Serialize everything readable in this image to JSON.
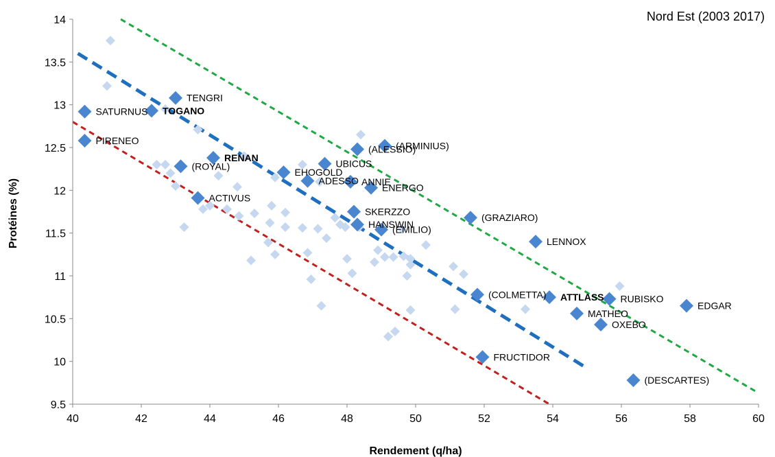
{
  "chart_data": {
    "type": "scatter",
    "title": "Nord Est (2003 2017)",
    "xlabel": "Rendement (q/ha)",
    "ylabel": "Protéines (%)",
    "xlim": [
      40,
      60
    ],
    "ylim": [
      9.5,
      14
    ],
    "xticks": [
      "40",
      "42",
      "44",
      "46",
      "48",
      "50",
      "52",
      "54",
      "56",
      "58",
      "60"
    ],
    "yticks": [
      "9.5",
      "10",
      "10.5",
      "11",
      "11.5",
      "12",
      "12.5",
      "13",
      "13.5",
      "14"
    ],
    "grid": false,
    "colors": {
      "labeled": "#4A86CF",
      "background": "#C5D8F0",
      "trend_main": "#1F6FBF",
      "trend_upper": "#1FA843",
      "trend_lower": "#C0201E"
    },
    "labeled_points": [
      {
        "label": "SATURNUS",
        "x": 40.35,
        "y": 12.92,
        "bold": false
      },
      {
        "label": "PIRENEO",
        "x": 40.35,
        "y": 12.58,
        "bold": false
      },
      {
        "label": "TOGANO",
        "x": 42.3,
        "y": 12.93,
        "bold": true
      },
      {
        "label": "TENGRI",
        "x": 43.0,
        "y": 13.08,
        "bold": false
      },
      {
        "label": "(ROYAL)",
        "x": 43.15,
        "y": 12.28,
        "bold": false
      },
      {
        "label": "RENAN",
        "x": 44.1,
        "y": 12.38,
        "bold": true
      },
      {
        "label": "ACTIVUS",
        "x": 43.65,
        "y": 11.91,
        "bold": false
      },
      {
        "label": "EHOGOLD",
        "x": 46.15,
        "y": 12.21,
        "bold": false
      },
      {
        "label": "ADESSO",
        "x": 46.85,
        "y": 12.11,
        "bold": false
      },
      {
        "label": "UBICUS",
        "x": 47.35,
        "y": 12.31,
        "bold": false
      },
      {
        "label": "(ALESSIO)",
        "x": 48.3,
        "y": 12.48,
        "bold": false
      },
      {
        "label": "(ARMINIUS)",
        "x": 49.1,
        "y": 12.52,
        "bold": false
      },
      {
        "label": "ANNIE",
        "x": 48.1,
        "y": 12.1,
        "bold": false
      },
      {
        "label": "ENERGO",
        "x": 48.7,
        "y": 12.03,
        "bold": false
      },
      {
        "label": "SKERZZO",
        "x": 48.2,
        "y": 11.75,
        "bold": false
      },
      {
        "label": "HANSWIN",
        "x": 48.3,
        "y": 11.6,
        "bold": false
      },
      {
        "label": "(EMILIO)",
        "x": 49.0,
        "y": 11.54,
        "bold": false
      },
      {
        "label": "(GRAZIARO)",
        "x": 51.6,
        "y": 11.68,
        "bold": false
      },
      {
        "label": "LENNOX",
        "x": 53.5,
        "y": 11.4,
        "bold": false
      },
      {
        "label": "(COLMETTA)",
        "x": 51.8,
        "y": 10.78,
        "bold": false
      },
      {
        "label": "ATTLASS",
        "x": 53.9,
        "y": 10.75,
        "bold": true
      },
      {
        "label": "RUBISKO",
        "x": 55.65,
        "y": 10.73,
        "bold": false
      },
      {
        "label": "EDGAR",
        "x": 57.9,
        "y": 10.65,
        "bold": false
      },
      {
        "label": "MATHEO",
        "x": 54.7,
        "y": 10.56,
        "bold": false
      },
      {
        "label": "OXEBO",
        "x": 55.4,
        "y": 10.43,
        "bold": false
      },
      {
        "label": "FRUCTIDOR",
        "x": 51.95,
        "y": 10.05,
        "bold": false
      },
      {
        "label": "(DESCARTES)",
        "x": 56.35,
        "y": 9.78,
        "bold": false
      }
    ],
    "background_points": [
      {
        "x": 41.1,
        "y": 13.75
      },
      {
        "x": 41.0,
        "y": 13.22
      },
      {
        "x": 42.7,
        "y": 12.95
      },
      {
        "x": 43.65,
        "y": 12.71
      },
      {
        "x": 42.45,
        "y": 12.3
      },
      {
        "x": 42.7,
        "y": 12.3
      },
      {
        "x": 42.85,
        "y": 12.2
      },
      {
        "x": 43.0,
        "y": 12.05
      },
      {
        "x": 44.25,
        "y": 12.17
      },
      {
        "x": 44.8,
        "y": 12.04
      },
      {
        "x": 45.0,
        "y": 12.4
      },
      {
        "x": 45.9,
        "y": 12.15
      },
      {
        "x": 46.7,
        "y": 12.3
      },
      {
        "x": 47.2,
        "y": 12.1
      },
      {
        "x": 48.4,
        "y": 12.65
      },
      {
        "x": 43.8,
        "y": 11.78
      },
      {
        "x": 44.0,
        "y": 11.82
      },
      {
        "x": 44.5,
        "y": 11.78
      },
      {
        "x": 44.85,
        "y": 11.7
      },
      {
        "x": 45.3,
        "y": 11.73
      },
      {
        "x": 45.75,
        "y": 11.62
      },
      {
        "x": 45.8,
        "y": 11.82
      },
      {
        "x": 46.2,
        "y": 11.57
      },
      {
        "x": 46.2,
        "y": 11.74
      },
      {
        "x": 43.25,
        "y": 11.57
      },
      {
        "x": 45.7,
        "y": 11.39
      },
      {
        "x": 45.9,
        "y": 11.25
      },
      {
        "x": 45.2,
        "y": 11.18
      },
      {
        "x": 46.7,
        "y": 11.56
      },
      {
        "x": 46.85,
        "y": 11.27
      },
      {
        "x": 47.15,
        "y": 11.55
      },
      {
        "x": 47.4,
        "y": 11.44
      },
      {
        "x": 47.65,
        "y": 11.68
      },
      {
        "x": 47.8,
        "y": 11.6
      },
      {
        "x": 47.95,
        "y": 11.57
      },
      {
        "x": 48.35,
        "y": 11.57
      },
      {
        "x": 48.0,
        "y": 11.2
      },
      {
        "x": 48.15,
        "y": 11.03
      },
      {
        "x": 48.8,
        "y": 11.16
      },
      {
        "x": 48.9,
        "y": 11.3
      },
      {
        "x": 49.1,
        "y": 11.22
      },
      {
        "x": 49.35,
        "y": 11.22
      },
      {
        "x": 49.65,
        "y": 11.23
      },
      {
        "x": 49.85,
        "y": 11.2
      },
      {
        "x": 49.85,
        "y": 11.13
      },
      {
        "x": 49.75,
        "y": 11.0
      },
      {
        "x": 49.85,
        "y": 10.6
      },
      {
        "x": 49.6,
        "y": 11.55
      },
      {
        "x": 50.3,
        "y": 11.36
      },
      {
        "x": 51.1,
        "y": 11.11
      },
      {
        "x": 51.4,
        "y": 11.02
      },
      {
        "x": 51.15,
        "y": 10.61
      },
      {
        "x": 46.95,
        "y": 10.96
      },
      {
        "x": 47.25,
        "y": 10.65
      },
      {
        "x": 49.2,
        "y": 10.29
      },
      {
        "x": 49.4,
        "y": 10.35
      },
      {
        "x": 53.2,
        "y": 10.61
      },
      {
        "x": 55.95,
        "y": 10.88
      }
    ],
    "trend_lines": [
      {
        "name": "main",
        "color": "#1F6FBF",
        "x1": 40.15,
        "y1": 13.6,
        "x2": 55.0,
        "y2": 9.92
      },
      {
        "name": "upper",
        "color": "#1FA843",
        "x1": 41.4,
        "y1": 14.0,
        "x2": 60.0,
        "y2": 9.63
      },
      {
        "name": "lower",
        "color": "#C0201E",
        "x1": 40.0,
        "y1": 12.8,
        "x2": 53.9,
        "y2": 9.5
      }
    ]
  }
}
